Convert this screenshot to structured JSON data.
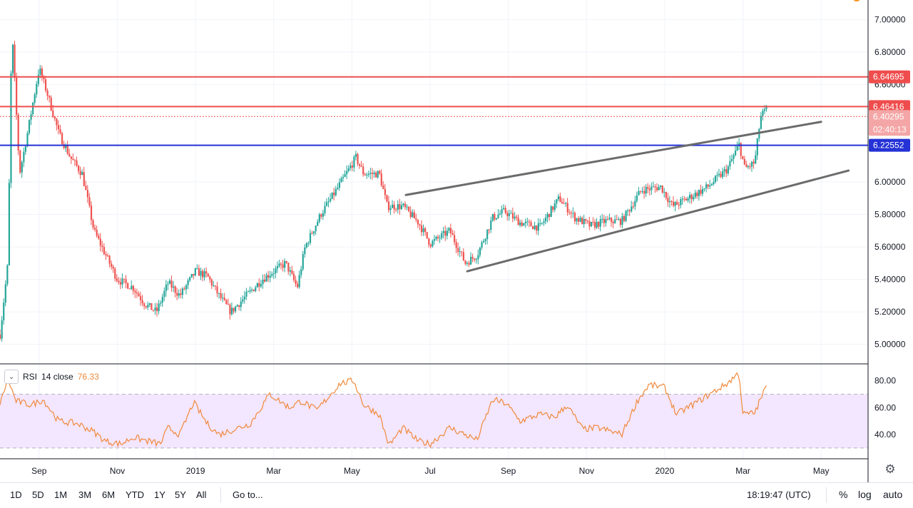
{
  "chart_data": {
    "type": "candlestick",
    "price_axis": {
      "ticks": [
        {
          "value": 7.0,
          "label": "7.00000"
        },
        {
          "value": 6.8,
          "label": "6.80000"
        },
        {
          "value": 6.6,
          "label": "6.60000"
        },
        {
          "value": 6.0,
          "label": "6.00000"
        },
        {
          "value": 5.8,
          "label": "5.80000"
        },
        {
          "value": 5.6,
          "label": "5.60000"
        },
        {
          "value": 5.4,
          "label": "5.40000"
        },
        {
          "value": 5.2,
          "label": "5.20000"
        },
        {
          "value": 5.0,
          "label": "5.00000"
        }
      ],
      "range": [
        4.88,
        7.12
      ]
    },
    "time_axis": {
      "ticks": [
        {
          "t": 1.0,
          "label": "Sep"
        },
        {
          "t": 3.0,
          "label": "Nov"
        },
        {
          "t": 5.0,
          "label": "2019"
        },
        {
          "t": 7.0,
          "label": "Mar"
        },
        {
          "t": 9.0,
          "label": "May"
        },
        {
          "t": 11.0,
          "label": "Jul"
        },
        {
          "t": 13.0,
          "label": "Sep"
        },
        {
          "t": 15.0,
          "label": "Nov"
        },
        {
          "t": 17.0,
          "label": "2020"
        },
        {
          "t": 19.0,
          "label": "Mar"
        },
        {
          "t": 21.0,
          "label": "May"
        }
      ],
      "range": [
        0.0,
        22.2
      ]
    },
    "price_keypoints": [
      [
        0.0,
        5.06
      ],
      [
        0.2,
        5.5
      ],
      [
        0.3,
        6.95
      ],
      [
        0.5,
        6.05
      ],
      [
        0.7,
        6.3
      ],
      [
        1.0,
        6.7
      ],
      [
        1.2,
        6.55
      ],
      [
        1.5,
        6.3
      ],
      [
        1.8,
        6.15
      ],
      [
        2.1,
        6.05
      ],
      [
        2.4,
        5.7
      ],
      [
        2.7,
        5.55
      ],
      [
        3.0,
        5.4
      ],
      [
        3.4,
        5.35
      ],
      [
        3.7,
        5.25
      ],
      [
        4.0,
        5.2
      ],
      [
        4.3,
        5.38
      ],
      [
        4.6,
        5.3
      ],
      [
        5.0,
        5.45
      ],
      [
        5.3,
        5.42
      ],
      [
        5.6,
        5.3
      ],
      [
        5.9,
        5.2
      ],
      [
        6.3,
        5.3
      ],
      [
        6.7,
        5.4
      ],
      [
        7.0,
        5.45
      ],
      [
        7.3,
        5.5
      ],
      [
        7.6,
        5.35
      ],
      [
        7.8,
        5.6
      ],
      [
        8.2,
        5.8
      ],
      [
        8.6,
        5.95
      ],
      [
        9.1,
        6.15
      ],
      [
        9.3,
        6.05
      ],
      [
        9.7,
        6.05
      ],
      [
        9.9,
        5.85
      ],
      [
        10.3,
        5.85
      ],
      [
        10.7,
        5.75
      ],
      [
        11.0,
        5.62
      ],
      [
        11.5,
        5.7
      ],
      [
        11.9,
        5.5
      ],
      [
        12.2,
        5.55
      ],
      [
        12.6,
        5.78
      ],
      [
        12.9,
        5.82
      ],
      [
        13.3,
        5.75
      ],
      [
        13.8,
        5.72
      ],
      [
        14.3,
        5.9
      ],
      [
        14.7,
        5.78
      ],
      [
        15.1,
        5.73
      ],
      [
        15.5,
        5.76
      ],
      [
        15.9,
        5.76
      ],
      [
        16.4,
        5.95
      ],
      [
        16.9,
        5.97
      ],
      [
        17.2,
        5.85
      ],
      [
        17.6,
        5.9
      ],
      [
        18.1,
        5.97
      ],
      [
        18.6,
        6.08
      ],
      [
        18.9,
        6.23
      ],
      [
        19.05,
        6.08
      ],
      [
        19.3,
        6.12
      ],
      [
        19.45,
        6.4
      ],
      [
        19.6,
        6.45
      ]
    ],
    "rsi_keypoints": [
      [
        0.0,
        62
      ],
      [
        0.2,
        82
      ],
      [
        0.4,
        65
      ],
      [
        0.8,
        62
      ],
      [
        1.1,
        66
      ],
      [
        1.5,
        50
      ],
      [
        2.0,
        48
      ],
      [
        2.4,
        42
      ],
      [
        2.7,
        35
      ],
      [
        3.1,
        33
      ],
      [
        3.4,
        38
      ],
      [
        3.8,
        35
      ],
      [
        4.1,
        33
      ],
      [
        4.3,
        45
      ],
      [
        4.6,
        40
      ],
      [
        4.95,
        64
      ],
      [
        5.3,
        48
      ],
      [
        5.6,
        40
      ],
      [
        6.0,
        44
      ],
      [
        6.4,
        48
      ],
      [
        6.9,
        70
      ],
      [
        7.4,
        60
      ],
      [
        7.7,
        65
      ],
      [
        8.1,
        58
      ],
      [
        8.7,
        78
      ],
      [
        9.05,
        80
      ],
      [
        9.3,
        62
      ],
      [
        9.7,
        55
      ],
      [
        9.95,
        32
      ],
      [
        10.3,
        45
      ],
      [
        10.7,
        35
      ],
      [
        11.0,
        33
      ],
      [
        11.5,
        45
      ],
      [
        12.2,
        36
      ],
      [
        12.6,
        66
      ],
      [
        12.95,
        63
      ],
      [
        13.3,
        50
      ],
      [
        13.8,
        55
      ],
      [
        14.2,
        53
      ],
      [
        14.5,
        62
      ],
      [
        14.9,
        44
      ],
      [
        15.3,
        45
      ],
      [
        15.9,
        40
      ],
      [
        16.3,
        65
      ],
      [
        16.6,
        77
      ],
      [
        17.0,
        75
      ],
      [
        17.3,
        55
      ],
      [
        17.7,
        62
      ],
      [
        18.1,
        69
      ],
      [
        18.6,
        78
      ],
      [
        18.9,
        86
      ],
      [
        19.0,
        55
      ],
      [
        19.3,
        56
      ],
      [
        19.6,
        76.33
      ]
    ],
    "horizontal_levels": [
      {
        "value": 6.64695,
        "label": "6.64695",
        "color": "#ef4d4d"
      },
      {
        "value": 6.46416,
        "label": "6.46416",
        "color": "#ef4d4d"
      },
      {
        "value": 6.22552,
        "label": "6.22552",
        "color": "#2432d6"
      }
    ],
    "last_price": {
      "value": 6.40295,
      "label": "6.40295",
      "countdown": "02:40:13",
      "color": "#ef5350"
    },
    "trendlines": [
      {
        "from": [
          10.38,
          5.92
        ],
        "to": [
          21.0,
          6.37
        ]
      },
      {
        "from": [
          11.95,
          5.45
        ],
        "to": [
          21.7,
          6.07
        ]
      }
    ],
    "rsi": {
      "title": "RSI",
      "params": "14 close",
      "value": "76.33",
      "range": [
        22,
        92
      ],
      "band": [
        30,
        70
      ],
      "ticks": [
        {
          "value": 80,
          "label": "80.00"
        },
        {
          "value": 60,
          "label": "60.00"
        },
        {
          "value": 40,
          "label": "40.00"
        }
      ],
      "color": "#f08a3c",
      "band_color": "#f3e6ff"
    },
    "up_color": "#26a69a",
    "down_color": "#ef5350"
  },
  "toolbar": {
    "ranges": [
      "1D",
      "5D",
      "1M",
      "3M",
      "6M",
      "YTD",
      "1Y",
      "5Y",
      "All"
    ],
    "goto_label": "Go to...",
    "clock": "18:19:47 (UTC)",
    "percent_label": "%",
    "log_label": "log",
    "auto_label": "auto"
  }
}
